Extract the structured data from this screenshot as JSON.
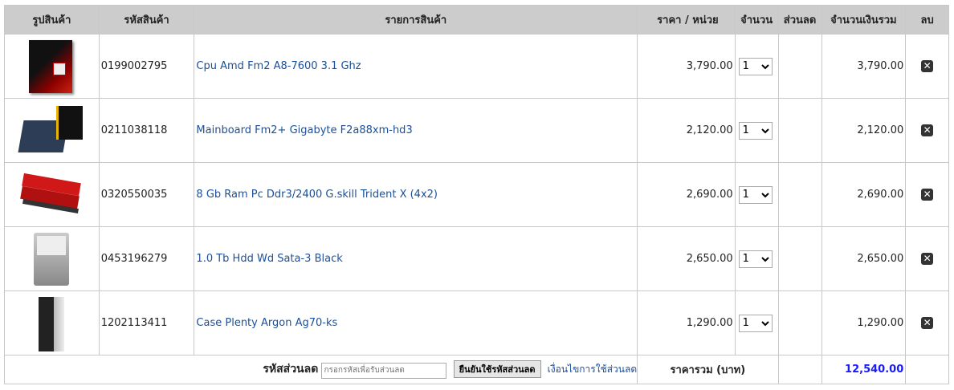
{
  "headers": {
    "image": "รูปสินค้า",
    "code": "รหัสสินค้า",
    "name": "รายการสินค้า",
    "price": "ราคา / หน่วย",
    "qty": "จำนวน",
    "discount": "ส่วนลด",
    "total": "จำนวนเงินรวม",
    "delete": "ลบ"
  },
  "items": [
    {
      "code": "0199002795",
      "name": "Cpu Amd Fm2 A8-7600 3.1 Ghz",
      "price": "3,790.00",
      "qty": "1",
      "total": "3,790.00"
    },
    {
      "code": "0211038118",
      "name": "Mainboard Fm2+ Gigabyte F2a88xm-hd3",
      "price": "2,120.00",
      "qty": "1",
      "total": "2,120.00"
    },
    {
      "code": "0320550035",
      "name": "8 Gb Ram Pc Ddr3/2400 G.skill Trident X (4x2)",
      "price": "2,690.00",
      "qty": "1",
      "total": "2,690.00"
    },
    {
      "code": "0453196279",
      "name": "1.0 Tb Hdd Wd Sata-3 Black",
      "price": "2,650.00",
      "qty": "1",
      "total": "2,650.00"
    },
    {
      "code": "1202113411",
      "name": "Case Plenty Argon Ag70-ks",
      "price": "1,290.00",
      "qty": "1",
      "total": "1,290.00"
    }
  ],
  "footer": {
    "discount_label": "รหัสส่วนลด",
    "discount_placeholder": "กรอกรหัสเพื่อรับส่วนลด",
    "apply_button": "ยืนยันใช้รหัสส่วนลด",
    "conditions_link": "เงื่อนไขการใช้ส่วนลด",
    "grand_total_label": "ราคารวม (บาท)",
    "grand_total": "12,540.00"
  },
  "colors": {
    "link": "#1a4f9c",
    "grand_total": "#1a1aff",
    "header_bg": "#cccccc"
  }
}
